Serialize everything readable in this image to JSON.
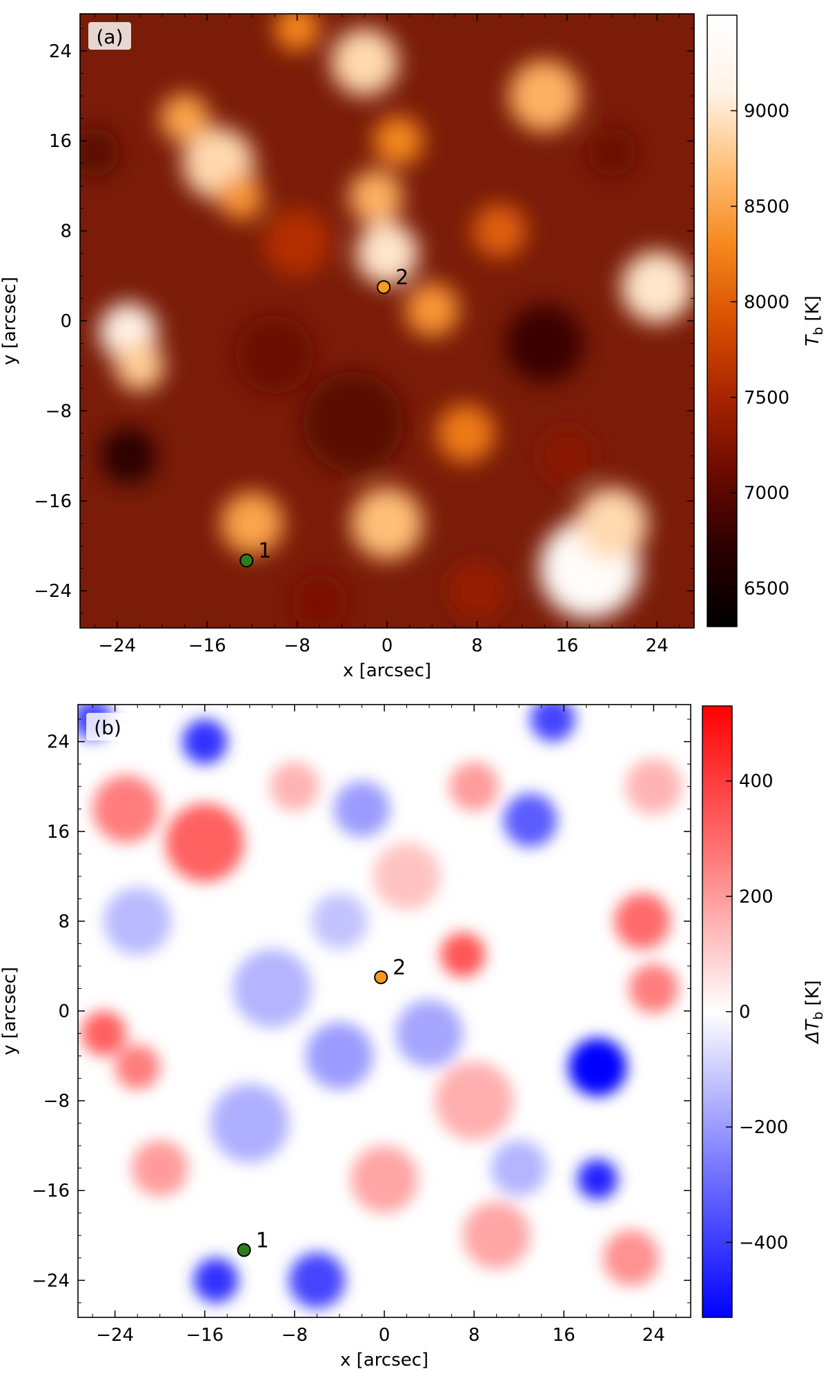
{
  "chart_data": [
    {
      "type": "heatmap",
      "panel_label": "(a)",
      "xlabel": "x [arcsec]",
      "ylabel": "y [arcsec]",
      "xlim": [
        -27.3,
        27.3
      ],
      "ylim": [
        -27.3,
        27.3
      ],
      "xticks": [
        -24,
        -16,
        -8,
        0,
        8,
        16,
        24
      ],
      "yticks": [
        -24,
        -16,
        -8,
        0,
        8,
        16,
        24
      ],
      "xtick_labels": [
        "−24",
        "−16",
        "−8",
        "0",
        "8",
        "16",
        "24"
      ],
      "ytick_labels": [
        "−24",
        "−16",
        "−8",
        "0",
        "8",
        "16",
        "24"
      ],
      "colorbar": {
        "label_main": "T",
        "label_sub": "b",
        "label_unit": " [K]",
        "range": [
          6300,
          9500
        ],
        "ticks": [
          6500,
          7000,
          7500,
          8000,
          8500,
          9000
        ],
        "tick_labels": [
          "6500",
          "7000",
          "7500",
          "8000",
          "8500",
          "9000"
        ],
        "colormap": [
          "#000000",
          "#2a0000",
          "#6a0a00",
          "#a82400",
          "#d85000",
          "#f5881e",
          "#ffbf78",
          "#fff3e8",
          "#ffffff"
        ]
      },
      "background_color": "#7a1c08",
      "blobs": [
        {
          "x": -23,
          "y": -1,
          "r": 2.6,
          "value": 9100
        },
        {
          "x": -22,
          "y": -4,
          "r": 2.2,
          "value": 8800
        },
        {
          "x": -15,
          "y": 14,
          "r": 3.2,
          "value": 8900
        },
        {
          "x": -18,
          "y": 18,
          "r": 2.2,
          "value": 8500
        },
        {
          "x": -13,
          "y": 11,
          "r": 2.0,
          "value": 8400
        },
        {
          "x": -2,
          "y": 23,
          "r": 3.0,
          "value": 8900
        },
        {
          "x": 0,
          "y": 6,
          "r": 2.8,
          "value": 9000
        },
        {
          "x": -1,
          "y": 11,
          "r": 2.4,
          "value": 8600
        },
        {
          "x": 1,
          "y": 16,
          "r": 2.2,
          "value": 8300
        },
        {
          "x": 4,
          "y": 1,
          "r": 2.4,
          "value": 8400
        },
        {
          "x": 14,
          "y": 20,
          "r": 3.2,
          "value": 8600
        },
        {
          "x": 24,
          "y": 3,
          "r": 3.2,
          "value": 9000
        },
        {
          "x": 18,
          "y": -22,
          "r": 4.5,
          "value": 9400
        },
        {
          "x": 20,
          "y": -18,
          "r": 3.2,
          "value": 8900
        },
        {
          "x": 0,
          "y": -18,
          "r": 3.2,
          "value": 8700
        },
        {
          "x": -12,
          "y": -18,
          "r": 2.8,
          "value": 8500
        },
        {
          "x": 7,
          "y": -10,
          "r": 2.6,
          "value": 8200
        },
        {
          "x": 10,
          "y": 8,
          "r": 2.4,
          "value": 8000
        },
        {
          "x": -8,
          "y": 26,
          "r": 2.0,
          "value": 8300
        },
        {
          "x": -3,
          "y": -9,
          "r": 4.5,
          "value": 7000
        },
        {
          "x": -10,
          "y": -3,
          "r": 3.5,
          "value": 7100
        },
        {
          "x": 14,
          "y": -2,
          "r": 3.5,
          "value": 6800
        },
        {
          "x": -23,
          "y": -12,
          "r": 2.5,
          "value": 6700
        },
        {
          "x": -26,
          "y": 15,
          "r": 2.2,
          "value": 7000
        },
        {
          "x": 20,
          "y": 15,
          "r": 2.2,
          "value": 7100
        },
        {
          "x": 16,
          "y": -12,
          "r": 2.5,
          "value": 7300
        },
        {
          "x": -6,
          "y": -25,
          "r": 2.5,
          "value": 7200
        },
        {
          "x": -8,
          "y": 7,
          "r": 3.0,
          "value": 7600
        },
        {
          "x": 8,
          "y": -24,
          "r": 2.5,
          "value": 7400
        }
      ],
      "markers": [
        {
          "label": "1",
          "x": -12.5,
          "y": -21.3,
          "color": "#2e7d1b"
        },
        {
          "label": "2",
          "x": -0.3,
          "y": 3.0,
          "color": "#ff9a1f"
        }
      ]
    },
    {
      "type": "heatmap",
      "panel_label": "(b)",
      "xlabel": "x [arcsec]",
      "ylabel": "y [arcsec]",
      "xlim": [
        -27.3,
        27.3
      ],
      "ylim": [
        -27.3,
        27.3
      ],
      "xticks": [
        -24,
        -16,
        -8,
        0,
        8,
        16,
        24
      ],
      "yticks": [
        -24,
        -16,
        -8,
        0,
        8,
        16,
        24
      ],
      "xtick_labels": [
        "−24",
        "−16",
        "−8",
        "0",
        "8",
        "16",
        "24"
      ],
      "ytick_labels": [
        "−24",
        "−16",
        "−8",
        "0",
        "8",
        "16",
        "24"
      ],
      "colorbar": {
        "label_main": "ΔT",
        "label_sub": "b",
        "label_unit": " [K]",
        "range": [
          -530,
          530
        ],
        "ticks": [
          -400,
          -200,
          0,
          200,
          400
        ],
        "tick_labels": [
          "−400",
          "−200",
          "0",
          "200",
          "400"
        ],
        "colormap": [
          "#0000ff",
          "#7a7aff",
          "#ffffff",
          "#ff7a7a",
          "#ff0000"
        ]
      },
      "background_color": "#ffffff",
      "blobs": [
        {
          "x": 19,
          "y": -5,
          "r": 2.6,
          "value": -520
        },
        {
          "x": 19,
          "y": -15,
          "r": 1.8,
          "value": -460
        },
        {
          "x": -16,
          "y": 15,
          "r": 3.5,
          "value": 320
        },
        {
          "x": -23,
          "y": 18,
          "r": 3.0,
          "value": 260
        },
        {
          "x": -25,
          "y": -2,
          "r": 2.0,
          "value": 320
        },
        {
          "x": -22,
          "y": -5,
          "r": 2.0,
          "value": 260
        },
        {
          "x": 23,
          "y": 8,
          "r": 2.5,
          "value": 300
        },
        {
          "x": 24,
          "y": 2,
          "r": 2.2,
          "value": 260
        },
        {
          "x": 7,
          "y": 5,
          "r": 2.0,
          "value": 340
        },
        {
          "x": -16,
          "y": 24,
          "r": 2.0,
          "value": -420
        },
        {
          "x": -26,
          "y": 26,
          "r": 1.8,
          "value": -380
        },
        {
          "x": -15,
          "y": -24,
          "r": 2.0,
          "value": -420
        },
        {
          "x": -6,
          "y": -24,
          "r": 2.5,
          "value": -380
        },
        {
          "x": 13,
          "y": 17,
          "r": 2.4,
          "value": -330
        },
        {
          "x": 15,
          "y": 26,
          "r": 2.0,
          "value": -380
        },
        {
          "x": -4,
          "y": -4,
          "r": 3.0,
          "value": -200
        },
        {
          "x": -10,
          "y": 2,
          "r": 3.5,
          "value": -150
        },
        {
          "x": 4,
          "y": -2,
          "r": 3.0,
          "value": -180
        },
        {
          "x": 8,
          "y": -8,
          "r": 3.5,
          "value": 160
        },
        {
          "x": 10,
          "y": -20,
          "r": 3.0,
          "value": 180
        },
        {
          "x": -2,
          "y": 18,
          "r": 2.5,
          "value": -200
        },
        {
          "x": 2,
          "y": 12,
          "r": 3.0,
          "value": 120
        },
        {
          "x": -12,
          "y": -10,
          "r": 3.5,
          "value": -160
        },
        {
          "x": -20,
          "y": -14,
          "r": 2.5,
          "value": 200
        },
        {
          "x": 0,
          "y": -15,
          "r": 3.0,
          "value": 180
        },
        {
          "x": -22,
          "y": 8,
          "r": 3.0,
          "value": -140
        },
        {
          "x": 22,
          "y": -22,
          "r": 2.5,
          "value": 220
        },
        {
          "x": -8,
          "y": 20,
          "r": 2.2,
          "value": 150
        },
        {
          "x": 8,
          "y": 20,
          "r": 2.2,
          "value": 200
        },
        {
          "x": 12,
          "y": -14,
          "r": 2.5,
          "value": -150
        },
        {
          "x": -4,
          "y": 8,
          "r": 2.5,
          "value": -120
        },
        {
          "x": 24,
          "y": 20,
          "r": 2.5,
          "value": 150
        }
      ],
      "markers": [
        {
          "label": "1",
          "x": -12.5,
          "y": -21.3,
          "color": "#2e7d1b"
        },
        {
          "label": "2",
          "x": -0.3,
          "y": 3.0,
          "color": "#ff9a1f"
        }
      ]
    }
  ]
}
